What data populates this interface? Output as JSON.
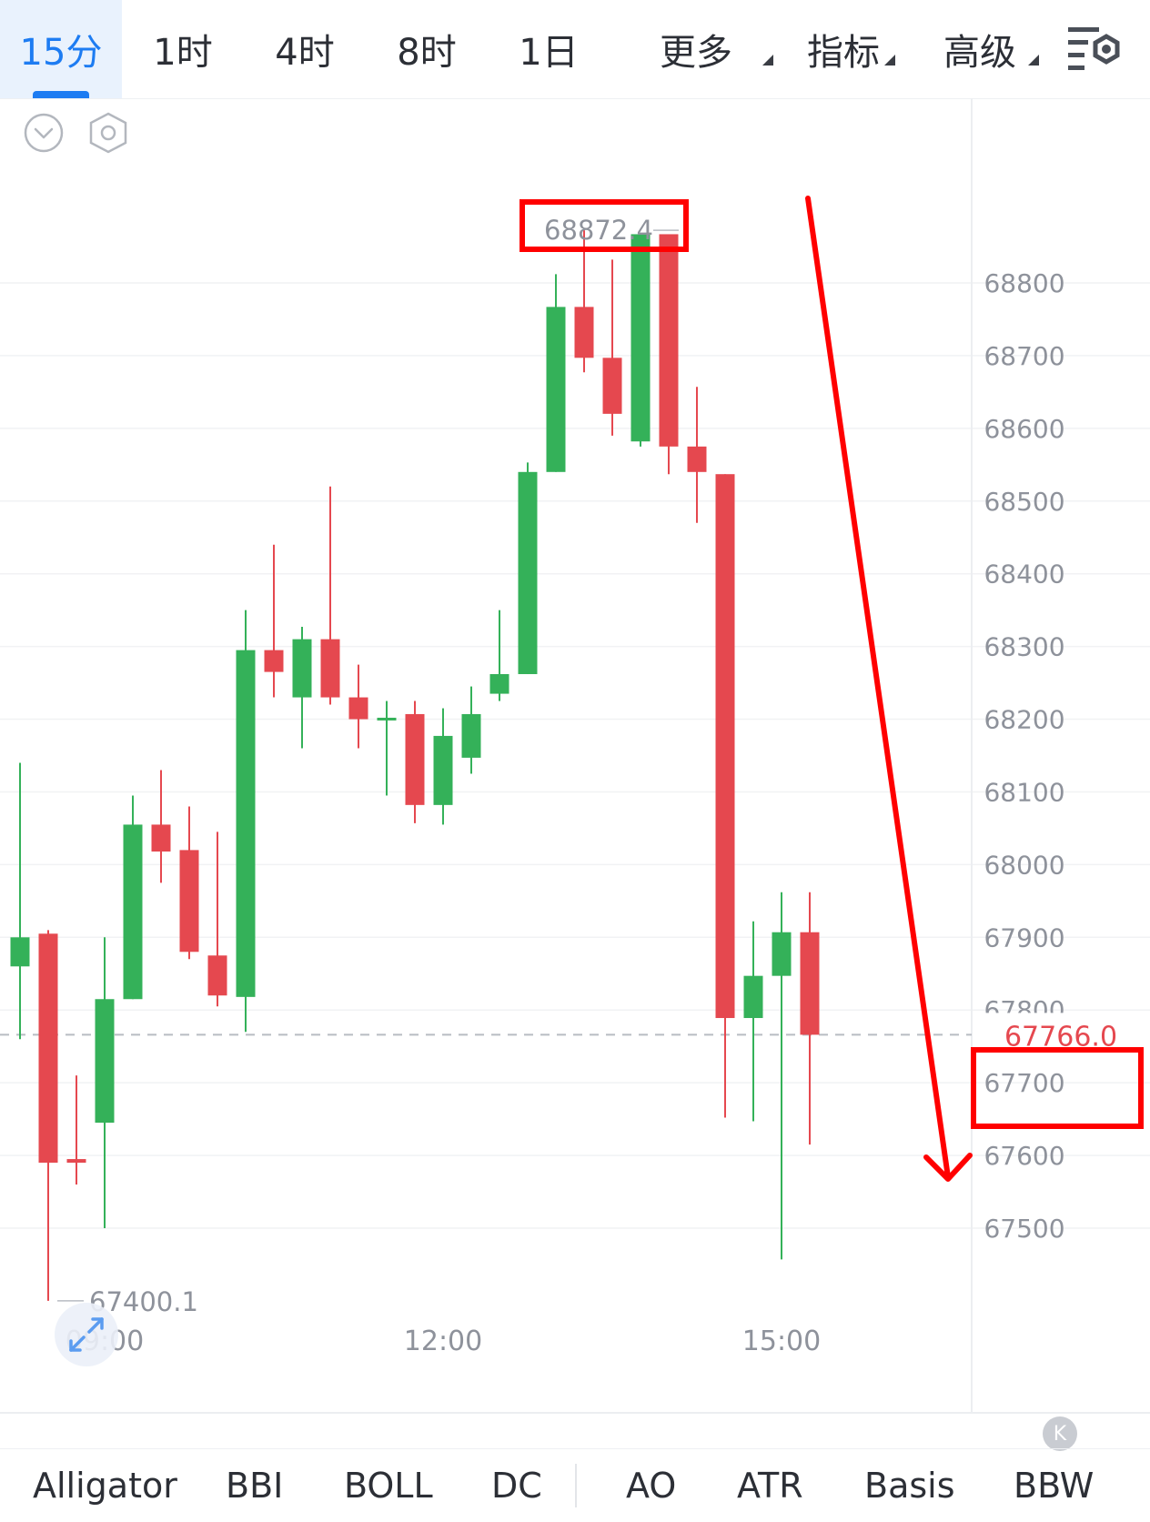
{
  "timeframes": {
    "items": [
      {
        "label": "15分",
        "active": true,
        "dropdown": false
      },
      {
        "label": "1时",
        "active": false,
        "dropdown": false
      },
      {
        "label": "4时",
        "active": false,
        "dropdown": false
      },
      {
        "label": "8时",
        "active": false,
        "dropdown": false
      },
      {
        "label": "1日",
        "active": false,
        "dropdown": false
      },
      {
        "label": "更多",
        "active": false,
        "dropdown": true
      },
      {
        "label": "指标",
        "active": false,
        "dropdown": true
      },
      {
        "label": "高级",
        "active": false,
        "dropdown": true
      }
    ]
  },
  "icons": {
    "settings": "chart-settings-icon",
    "collapse": "chevron-down-circle-icon",
    "hex": "hexagon-settings-icon",
    "expand": "expand-arrows-icon"
  },
  "colors": {
    "up": "#34b159",
    "down": "#e5484f",
    "accent": "#1d7cf2",
    "annotation": "#ff0000",
    "grid": "#f1f2f4",
    "axis_text": "#8e929b"
  },
  "chart_data": {
    "type": "candlestick",
    "ylim": [
      67380,
      68960
    ],
    "y_ticks": [
      68800,
      68700,
      68600,
      68500,
      68400,
      68300,
      68200,
      68100,
      68000,
      67900,
      67800,
      67700,
      67600,
      67500
    ],
    "x_tick_labels": [
      "09:00",
      "12:00",
      "15:00"
    ],
    "x_tick_candle_index": [
      3,
      15,
      27
    ],
    "high_marker": {
      "label": "68872.4",
      "value": 68872.4
    },
    "low_marker": {
      "label": "67400.1",
      "value": 67400.1
    },
    "last_price": {
      "label": "67766.0",
      "value": 67766.0
    },
    "candles": [
      {
        "o": 67860,
        "c": 67900,
        "h": 68140,
        "l": 67760
      },
      {
        "o": 67905,
        "c": 67590,
        "h": 67910,
        "l": 67400.1
      },
      {
        "o": 67595,
        "c": 67590,
        "h": 67710,
        "l": 67560
      },
      {
        "o": 67645,
        "c": 67815,
        "h": 67900,
        "l": 67500
      },
      {
        "o": 67815,
        "c": 68055,
        "h": 68095,
        "l": 67815
      },
      {
        "o": 68055,
        "c": 68018,
        "h": 68130,
        "l": 67975
      },
      {
        "o": 68020,
        "c": 67880,
        "h": 68080,
        "l": 67870
      },
      {
        "o": 67875,
        "c": 67820,
        "h": 68045,
        "l": 67805
      },
      {
        "o": 67818,
        "c": 68295,
        "h": 68350,
        "l": 67770
      },
      {
        "o": 68295,
        "c": 68265,
        "h": 68440,
        "l": 68230
      },
      {
        "o": 68230,
        "c": 68310,
        "h": 68327,
        "l": 68160
      },
      {
        "o": 68310,
        "c": 68230,
        "h": 68520,
        "l": 68220
      },
      {
        "o": 68230,
        "c": 68200,
        "h": 68275,
        "l": 68160
      },
      {
        "o": 68200,
        "c": 68202,
        "h": 68225,
        "l": 68095
      },
      {
        "o": 68207,
        "c": 68082,
        "h": 68225,
        "l": 68057
      },
      {
        "o": 68082,
        "c": 68177,
        "h": 68215,
        "l": 68055
      },
      {
        "o": 68147,
        "c": 68207,
        "h": 68245,
        "l": 68125
      },
      {
        "o": 68235,
        "c": 68262,
        "h": 68350,
        "l": 68225
      },
      {
        "o": 68262,
        "c": 68540,
        "h": 68553,
        "l": 68262
      },
      {
        "o": 68540,
        "c": 68767,
        "h": 68812,
        "l": 68540
      },
      {
        "o": 68767,
        "c": 68697,
        "h": 68872.4,
        "l": 68677
      },
      {
        "o": 68697,
        "c": 68620,
        "h": 68832,
        "l": 68590
      },
      {
        "o": 68582,
        "c": 68867,
        "h": 68867,
        "l": 68575
      },
      {
        "o": 68867,
        "c": 68575,
        "h": 68867,
        "l": 68537
      },
      {
        "o": 68575,
        "c": 68540,
        "h": 68657,
        "l": 68470
      },
      {
        "o": 68537,
        "c": 67789,
        "h": 68537,
        "l": 67652
      },
      {
        "o": 67789,
        "c": 67847,
        "h": 67922,
        "l": 67647
      },
      {
        "o": 67847,
        "c": 67907,
        "h": 67962,
        "l": 67457
      },
      {
        "o": 67907,
        "c": 67766,
        "h": 67962,
        "l": 67615
      }
    ]
  },
  "indicators": {
    "items": [
      "Alligator",
      "BBI",
      "BOLL",
      "DC",
      "AO",
      "ATR",
      "Basis",
      "BBW"
    ]
  },
  "badge": {
    "label": "K"
  }
}
